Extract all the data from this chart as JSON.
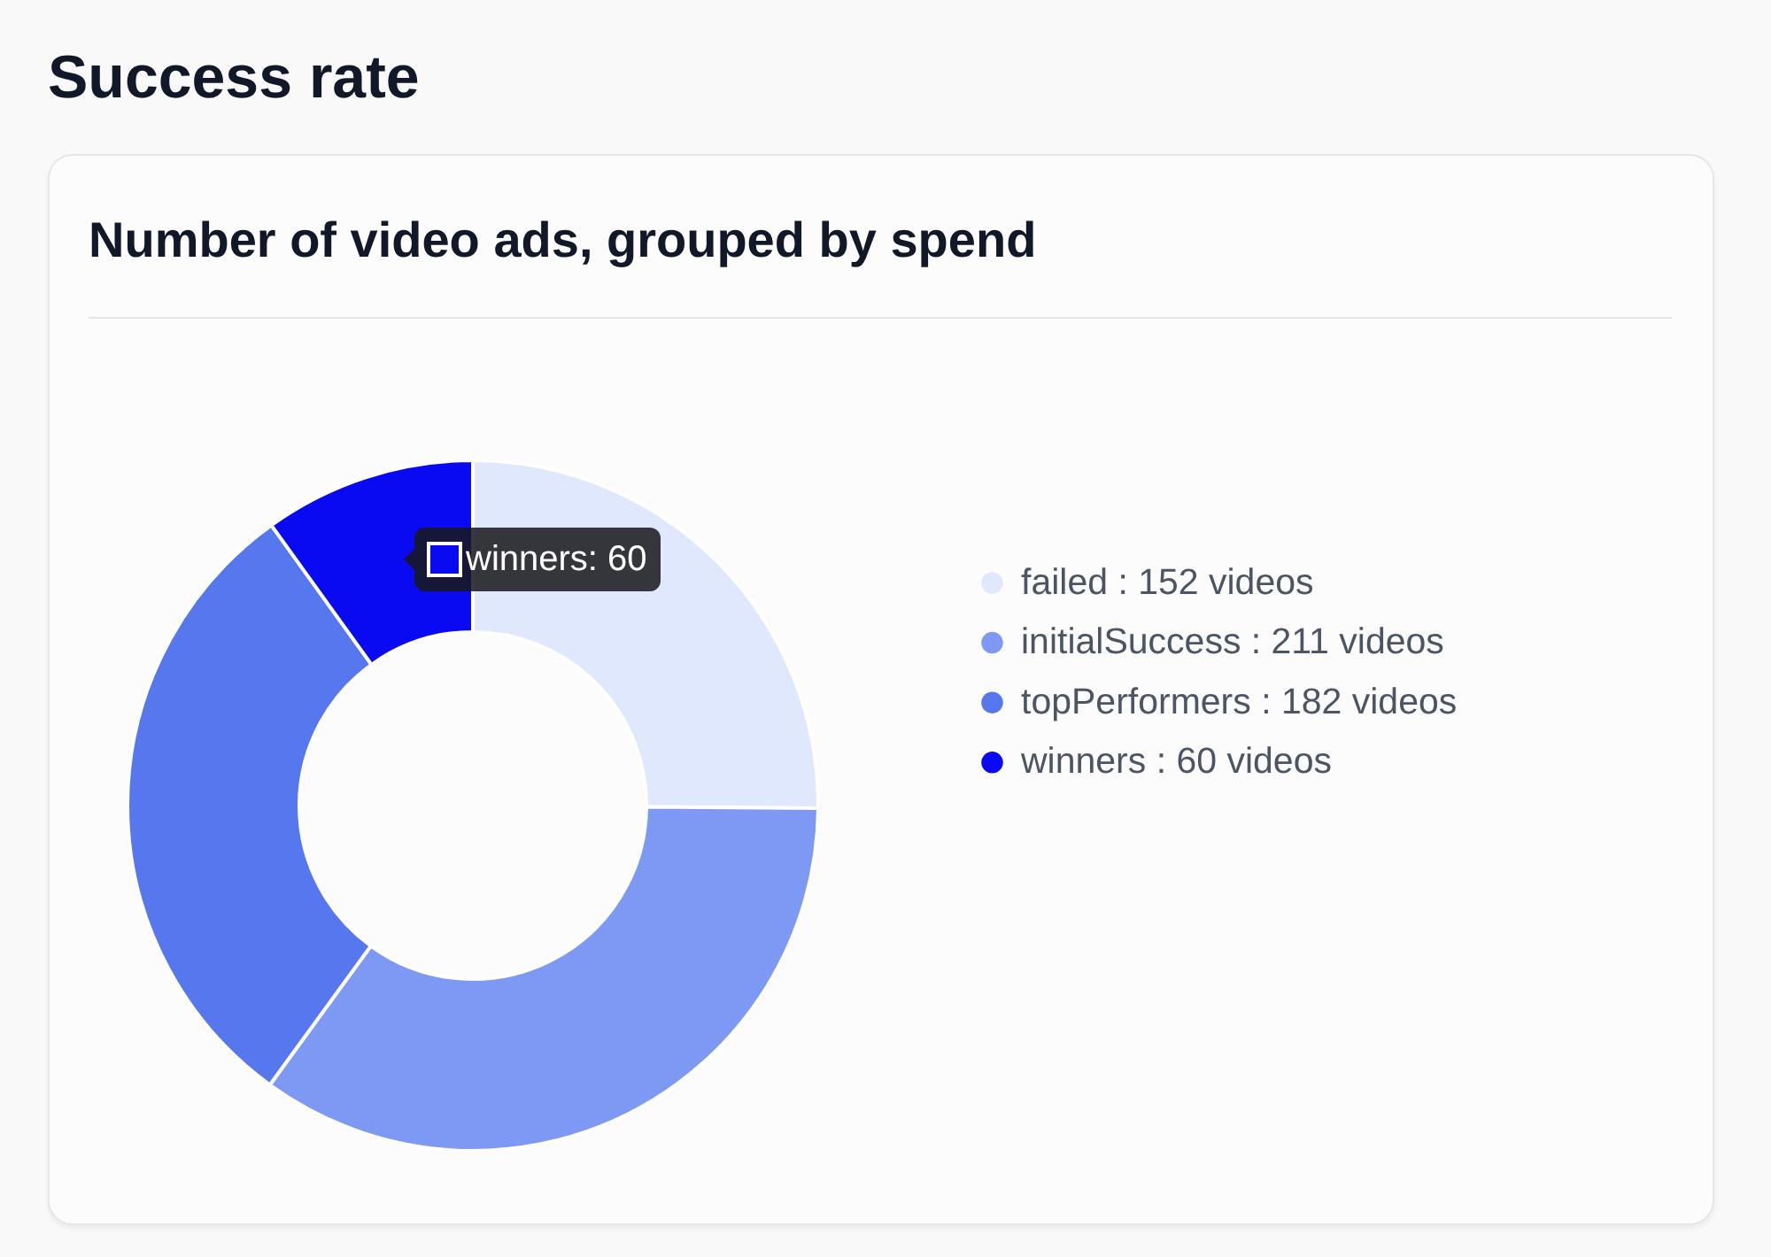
{
  "chart_data": {
    "type": "donut",
    "title": "Success rate",
    "subtitle": "Number of video ads, grouped by spend",
    "categories": [
      "failed : 152 videos",
      "initialSuccess : 211 videos",
      "topPerformers : 182 videos",
      "winners : 60 videos"
    ],
    "values": [
      152,
      211,
      182,
      60
    ],
    "colors": [
      "#dfe8fd",
      "#7e99f4",
      "#5677ee",
      "#0a0af2"
    ],
    "legend": "right",
    "annotations": [
      "winners: 60"
    ]
  }
}
